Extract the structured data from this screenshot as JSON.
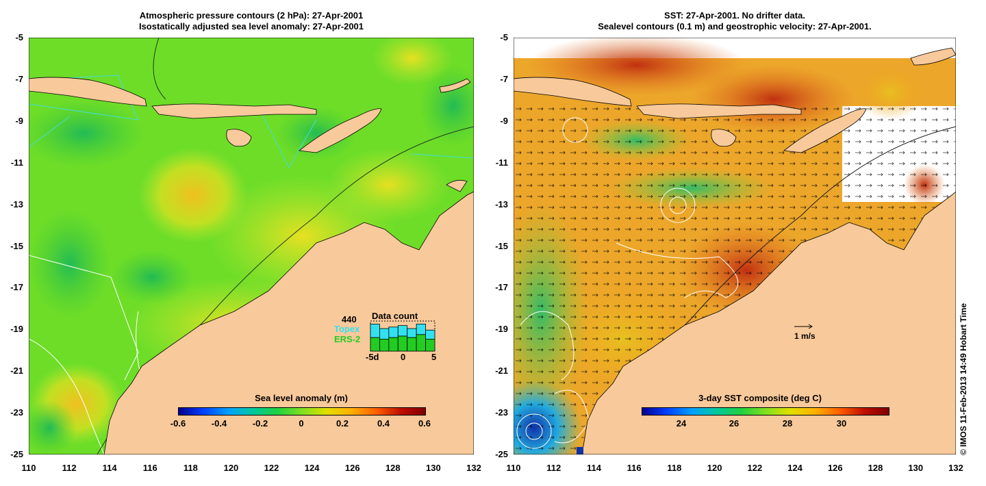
{
  "left_panel": {
    "title_line1": "Atmospheric pressure contours (2 hPa): 27-Apr-2001",
    "title_line2": "Isostatically adjusted sea level anomaly: 27-Apr-2001",
    "colorbar": {
      "title": "Sea level anomaly (m)",
      "labels": [
        "-0.6",
        "-0.4",
        "-0.2",
        "0",
        "0.2",
        "0.4",
        "0.6"
      ]
    },
    "inset": {
      "count": "440",
      "title": "Data count",
      "series": [
        {
          "name": "Topex",
          "color": "#33e0f0"
        },
        {
          "name": "ERS-2",
          "color": "#22cc22"
        }
      ],
      "x_labels": [
        "-5d",
        "0",
        "5"
      ],
      "topex_values": [
        0.9,
        0.75,
        0.8,
        0.85,
        0.75,
        0.9,
        0.7
      ],
      "ers_values": [
        0.45,
        0.4,
        0.45,
        0.5,
        0.45,
        0.55,
        0.4
      ]
    }
  },
  "right_panel": {
    "title_line1": "SST: 27-Apr-2001. No drifter data.",
    "title_line2": "Sealevel contours (0.1 m) and geostrophic velocity: 27-Apr-2001.",
    "colorbar": {
      "title": "3-day SST composite (deg C)",
      "labels": [
        "24",
        "26",
        "28",
        "30"
      ]
    },
    "velocity_scale_label": "1 m/s"
  },
  "axes": {
    "y_ticks": [
      "-5",
      "-7",
      "-9",
      "-11",
      "-13",
      "-15",
      "-17",
      "-19",
      "-21",
      "-23",
      "-25"
    ],
    "x_ticks": [
      "110",
      "112",
      "114",
      "116",
      "118",
      "120",
      "122",
      "124",
      "126",
      "128",
      "130",
      "132"
    ]
  },
  "credit": "© IMOS 11-Feb-2013 14:49 Hobart Time",
  "colors": {
    "land": "#f8c99a",
    "sla_background": "#66dd22",
    "sst_background": "#f0a020",
    "contour": "#ffffff",
    "track": "#44dddd"
  }
}
